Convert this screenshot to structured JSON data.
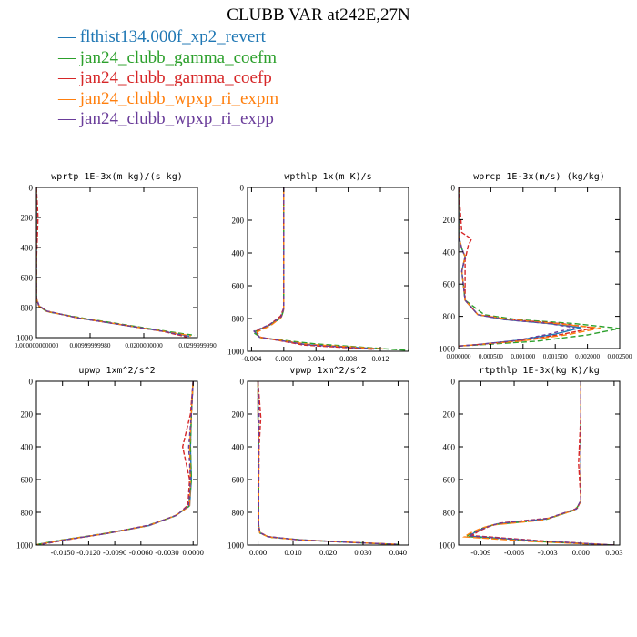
{
  "title": "CLUBB VAR at242E,27N",
  "legend": [
    {
      "label": "flthist134.000f_xp2_revert",
      "color": "#1f77b4"
    },
    {
      "label": "jan24_clubb_gamma_coefm",
      "color": "#2ca02c"
    },
    {
      "label": "jan24_clubb_gamma_coefp",
      "color": "#d62728"
    },
    {
      "label": "jan24_clubb_wpxp_ri_expm",
      "color": "#ff7f0e"
    },
    {
      "label": "jan24_clubb_wpxp_ri_expp",
      "color": "#6a3d9a"
    }
  ],
  "chart_data": [
    {
      "type": "line",
      "title": "wprtp  1E-3x(m kg)/(s kg)",
      "xlim": [
        0,
        0.03
      ],
      "ylim": [
        1000,
        0
      ],
      "xticks": [
        0,
        0.01,
        0.02,
        0.03
      ],
      "xticklabels": [
        "0.000000000000",
        "0.00999999980",
        "0.0200000000",
        "0.0299999990"
      ],
      "yticks": [
        0,
        200,
        400,
        600,
        800,
        1000
      ],
      "yticklabels": [
        "0",
        "200",
        "400",
        "600",
        "800",
        "1000"
      ],
      "series": [
        {
          "name": "flthist134.000f_xp2_revert",
          "x": [
            0,
            0,
            0,
            0,
            0.0005,
            0.002,
            0.008,
            0.016,
            0.024,
            0.0285
          ],
          "y": [
            0,
            200,
            500,
            740,
            790,
            825,
            870,
            915,
            960,
            990
          ]
        },
        {
          "name": "jan24_clubb_gamma_coefm",
          "x": [
            0,
            0,
            0,
            0,
            0.0005,
            0.002,
            0.009,
            0.017,
            0.025,
            0.0295
          ],
          "y": [
            0,
            200,
            500,
            745,
            792,
            828,
            872,
            917,
            962,
            985
          ]
        },
        {
          "name": "jan24_clubb_gamma_coefp",
          "x": [
            0,
            0.0003,
            0,
            0,
            0.0004,
            0.0018,
            0.0075,
            0.0155,
            0.0235,
            0.028
          ],
          "y": [
            0,
            200,
            500,
            735,
            785,
            822,
            868,
            912,
            958,
            995
          ]
        },
        {
          "name": "jan24_clubb_wpxp_ri_expm",
          "x": [
            0,
            0,
            0,
            0,
            0.0005,
            0.002,
            0.0082,
            0.0162,
            0.0242,
            0.0288
          ],
          "y": [
            0,
            200,
            500,
            742,
            791,
            826,
            871,
            916,
            961,
            988
          ]
        },
        {
          "name": "jan24_clubb_wpxp_ri_expp",
          "x": [
            0,
            0,
            0,
            0,
            0.0005,
            0.002,
            0.0078,
            0.0158,
            0.0238,
            0.0283
          ],
          "y": [
            0,
            200,
            500,
            738,
            788,
            824,
            869,
            914,
            959,
            992
          ]
        }
      ]
    },
    {
      "type": "line",
      "title": "wpthlp  1x(m K)/s",
      "xlim": [
        -0.0045,
        0.0155
      ],
      "ylim": [
        1000,
        0
      ],
      "xticks": [
        -0.004,
        0,
        0.004,
        0.008,
        0.012
      ],
      "xticklabels": [
        "-0.004",
        "0.000",
        "0.004",
        "0.008",
        "0.012"
      ],
      "yticks": [
        0,
        200,
        400,
        600,
        800,
        1000
      ],
      "yticklabels": [
        "0",
        "200",
        "400",
        "600",
        "800",
        "1000"
      ],
      "series": [
        {
          "name": "flthist134.000f_xp2_revert",
          "x": [
            0,
            0,
            0,
            0,
            -0.0003,
            -0.0018,
            -0.0036,
            -0.003,
            0.003,
            0.012
          ],
          "y": [
            0,
            300,
            600,
            740,
            790,
            840,
            880,
            915,
            960,
            985
          ]
        },
        {
          "name": "jan24_clubb_gamma_coefm",
          "x": [
            0,
            0,
            0,
            0,
            -0.0003,
            -0.0019,
            -0.0038,
            -0.0028,
            0.004,
            0.0155
          ],
          "y": [
            0,
            300,
            600,
            745,
            795,
            845,
            885,
            918,
            955,
            995
          ]
        },
        {
          "name": "jan24_clubb_gamma_coefp",
          "x": [
            0,
            0,
            0,
            0,
            -0.0004,
            -0.0017,
            -0.0034,
            -0.0031,
            0.0025,
            0.011
          ],
          "y": [
            0,
            300,
            600,
            735,
            785,
            835,
            875,
            912,
            962,
            988
          ]
        },
        {
          "name": "jan24_clubb_wpxp_ri_expm",
          "x": [
            0,
            0,
            0,
            0,
            -0.0003,
            -0.0016,
            -0.0033,
            -0.0029,
            0.0032,
            0.0125
          ],
          "y": [
            0,
            300,
            600,
            742,
            792,
            842,
            882,
            916,
            958,
            986
          ]
        },
        {
          "name": "jan24_clubb_wpxp_ri_expp",
          "x": [
            0,
            0,
            0,
            0,
            -0.0003,
            -0.0018,
            -0.0037,
            -0.003,
            0.0028,
            0.0115
          ],
          "y": [
            0,
            300,
            600,
            738,
            788,
            838,
            878,
            914,
            960,
            987
          ]
        }
      ]
    },
    {
      "type": "line",
      "title": "wprcp  1E-3x(m/s) (kg/kg)",
      "xlim": [
        0,
        0.0025
      ],
      "ylim": [
        1000,
        0
      ],
      "xticks": [
        0,
        0.0005,
        0.001,
        0.0015,
        0.002,
        0.0025
      ],
      "xticklabels": [
        "0.000000",
        "0.000500",
        "0.001000",
        "0.001500",
        "0.002000",
        "0.002500"
      ],
      "yticks": [
        0,
        200,
        400,
        600,
        800,
        1000
      ],
      "yticklabels": [
        "0",
        "200",
        "400",
        "600",
        "800",
        "1000"
      ],
      "series": [
        {
          "name": "flthist134.000f_xp2_revert",
          "x": [
            0,
            0,
            5e-05,
            0.0001,
            5e-05,
            0.0001,
            0.0003,
            0.0007,
            0.0014,
            0.0019,
            0.0015,
            0.0009,
            0.0003,
            0
          ],
          "y": [
            0,
            300,
            380,
            430,
            520,
            700,
            790,
            820,
            845,
            870,
            910,
            950,
            975,
            985
          ]
        },
        {
          "name": "jan24_clubb_gamma_coefm",
          "x": [
            0,
            0,
            5e-05,
            0.0001,
            5e-05,
            0.0001,
            0.0004,
            0.0009,
            0.0018,
            0.0025,
            0.002,
            0.0012,
            0.0004,
            0
          ],
          "y": [
            0,
            300,
            380,
            430,
            520,
            700,
            790,
            820,
            845,
            875,
            915,
            955,
            975,
            985
          ]
        },
        {
          "name": "jan24_clubb_gamma_coefp",
          "x": [
            0,
            5e-05,
            0.0002,
            0.00015,
            0.0001,
            0.0001,
            0.0003,
            0.0008,
            0.0016,
            0.0021,
            0.0016,
            0.001,
            0.0003,
            0
          ],
          "y": [
            0,
            280,
            320,
            360,
            450,
            700,
            790,
            820,
            845,
            872,
            912,
            950,
            975,
            985
          ]
        },
        {
          "name": "jan24_clubb_wpxp_ri_expm",
          "x": [
            0,
            0,
            5e-05,
            0.0001,
            5e-05,
            0.0001,
            0.0003,
            0.0008,
            0.0015,
            0.0022,
            0.0017,
            0.001,
            0.0003,
            0
          ],
          "y": [
            0,
            300,
            380,
            430,
            520,
            700,
            790,
            820,
            845,
            873,
            913,
            952,
            975,
            985
          ]
        },
        {
          "name": "jan24_clubb_wpxp_ri_expp",
          "x": [
            0,
            0,
            5e-05,
            0.0001,
            5e-05,
            0.0001,
            0.0003,
            0.0007,
            0.0014,
            0.0018,
            0.0014,
            0.0009,
            0.0003,
            0
          ],
          "y": [
            0,
            300,
            380,
            430,
            520,
            700,
            790,
            820,
            845,
            870,
            910,
            950,
            975,
            985
          ]
        }
      ]
    },
    {
      "type": "line",
      "title": "upwp  1xm^2/s^2",
      "xlim": [
        -0.018,
        0.0005
      ],
      "ylim": [
        1000,
        0
      ],
      "xticks": [
        -0.015,
        -0.012,
        -0.009,
        -0.006,
        -0.003,
        0
      ],
      "xticklabels": [
        "-0.0150",
        "-0.0120",
        "-0.0090",
        "-0.0060",
        "-0.0030",
        "0.0000"
      ],
      "yticks": [
        0,
        200,
        400,
        600,
        800,
        1000
      ],
      "yticklabels": [
        "0",
        "200",
        "400",
        "600",
        "800",
        "1000"
      ],
      "series": [
        {
          "name": "flthist134.000f_xp2_revert",
          "x": [
            0,
            -0.0002,
            -0.0003,
            -0.0002,
            -0.0004,
            -0.002,
            -0.005,
            -0.01,
            -0.015,
            -0.0178
          ],
          "y": [
            0,
            200,
            400,
            600,
            760,
            820,
            880,
            930,
            970,
            995
          ]
        },
        {
          "name": "jan24_clubb_gamma_coefm",
          "x": [
            0,
            -0.0002,
            -0.0003,
            -0.0002,
            -0.0005,
            -0.0022,
            -0.0055,
            -0.0105,
            -0.0155,
            -0.018
          ],
          "y": [
            0,
            200,
            400,
            600,
            765,
            825,
            885,
            932,
            972,
            998
          ]
        },
        {
          "name": "jan24_clubb_gamma_coefp",
          "x": [
            0,
            -0.0003,
            -0.0012,
            -0.0004,
            -0.0006,
            -0.0018,
            -0.0048,
            -0.0095,
            -0.0145,
            -0.0175
          ],
          "y": [
            0,
            200,
            400,
            600,
            755,
            815,
            875,
            925,
            968,
            996
          ]
        },
        {
          "name": "jan24_clubb_wpxp_ri_expm",
          "x": [
            0,
            -0.0002,
            -0.0004,
            -0.0003,
            -0.0004,
            -0.0021,
            -0.0052,
            -0.0102,
            -0.0152,
            -0.0179
          ],
          "y": [
            0,
            200,
            400,
            600,
            762,
            822,
            882,
            931,
            971,
            997
          ]
        },
        {
          "name": "jan24_clubb_wpxp_ri_expp",
          "x": [
            0,
            -0.0002,
            -0.0005,
            -0.0003,
            -0.0005,
            -0.0019,
            -0.005,
            -0.0098,
            -0.0148,
            -0.0176
          ],
          "y": [
            0,
            200,
            400,
            600,
            758,
            818,
            878,
            928,
            969,
            996
          ]
        }
      ]
    },
    {
      "type": "line",
      "title": "vpwp  1xm^2/s^2",
      "xlim": [
        -0.003,
        0.043
      ],
      "ylim": [
        1000,
        0
      ],
      "xticks": [
        0,
        0.01,
        0.02,
        0.03,
        0.04
      ],
      "xticklabels": [
        "0.000",
        "0.010",
        "0.020",
        "0.030",
        "0.040"
      ],
      "yticks": [
        0,
        200,
        400,
        600,
        800,
        1000
      ],
      "yticklabels": [
        "0",
        "200",
        "400",
        "600",
        "800",
        "1000"
      ],
      "series": [
        {
          "name": "flthist134.000f_xp2_revert",
          "x": [
            0,
            0,
            0.0002,
            0.0002,
            0.0002,
            0.0005,
            0.003,
            0.012,
            0.028,
            0.04
          ],
          "y": [
            0,
            200,
            400,
            700,
            880,
            925,
            950,
            968,
            985,
            996
          ]
        },
        {
          "name": "jan24_clubb_gamma_coefm",
          "x": [
            0,
            0,
            0.0002,
            0.0002,
            0.0002,
            0.0006,
            0.0032,
            0.013,
            0.029,
            0.041
          ],
          "y": [
            0,
            200,
            400,
            700,
            885,
            928,
            952,
            970,
            986,
            997
          ]
        },
        {
          "name": "jan24_clubb_gamma_coefp",
          "x": [
            0,
            0.0008,
            0.0003,
            0.0002,
            0.0002,
            0.0005,
            0.0028,
            0.011,
            0.027,
            0.039
          ],
          "y": [
            0,
            220,
            400,
            700,
            875,
            922,
            948,
            967,
            984,
            995
          ]
        },
        {
          "name": "jan24_clubb_wpxp_ri_expm",
          "x": [
            0,
            0,
            0.0002,
            0.0002,
            0.0002,
            0.0005,
            0.003,
            0.0125,
            0.0285,
            0.0405
          ],
          "y": [
            0,
            200,
            400,
            700,
            882,
            926,
            951,
            969,
            985,
            996
          ]
        },
        {
          "name": "jan24_clubb_wpxp_ri_expp",
          "x": [
            0,
            0.0003,
            0.0002,
            0.0002,
            0.0002,
            0.0005,
            0.0029,
            0.0115,
            0.0275,
            0.0395
          ],
          "y": [
            0,
            200,
            400,
            700,
            878,
            924,
            949,
            968,
            985,
            995
          ]
        }
      ]
    },
    {
      "type": "line",
      "title": "rtpthlp  1E-3x(kg K)/kg",
      "xlim": [
        -0.011,
        0.0035
      ],
      "ylim": [
        1000,
        0
      ],
      "xticks": [
        -0.009,
        -0.006,
        -0.003,
        0,
        0.003
      ],
      "xticklabels": [
        "-0.009",
        "-0.006",
        "-0.003",
        "0.000",
        "0.003"
      ],
      "yticks": [
        0,
        200,
        400,
        600,
        800,
        1000
      ],
      "yticklabels": [
        "0",
        "200",
        "400",
        "600",
        "800",
        "1000"
      ],
      "series": [
        {
          "name": "flthist134.000f_xp2_revert",
          "x": [
            0,
            0,
            0,
            0,
            -0.0004,
            -0.003,
            -0.0075,
            -0.0085,
            -0.0095,
            -0.01,
            -0.004,
            0.003
          ],
          "y": [
            0,
            200,
            500,
            730,
            780,
            840,
            870,
            890,
            920,
            945,
            975,
            1000
          ]
        },
        {
          "name": "jan24_clubb_gamma_coefm",
          "x": [
            0,
            0,
            0,
            0,
            -0.0005,
            -0.0032,
            -0.0078,
            -0.0088,
            -0.0098,
            -0.0103,
            -0.0042,
            0.003
          ],
          "y": [
            0,
            200,
            500,
            735,
            785,
            845,
            875,
            895,
            925,
            948,
            977,
            1000
          ]
        },
        {
          "name": "jan24_clubb_gamma_coefp",
          "x": [
            0,
            0,
            -0.0002,
            0,
            -0.0003,
            -0.0028,
            -0.0072,
            -0.0082,
            -0.0092,
            -0.0098,
            -0.0038,
            0.003
          ],
          "y": [
            0,
            200,
            500,
            725,
            775,
            835,
            865,
            885,
            915,
            942,
            973,
            1000
          ]
        },
        {
          "name": "jan24_clubb_wpxp_ri_expm",
          "x": [
            0,
            0,
            0,
            0,
            -0.0006,
            -0.0035,
            -0.008,
            -0.009,
            -0.01,
            -0.0105,
            -0.0045,
            0.003
          ],
          "y": [
            0,
            200,
            500,
            738,
            788,
            848,
            878,
            898,
            928,
            950,
            978,
            1000
          ]
        },
        {
          "name": "jan24_clubb_wpxp_ri_expp",
          "x": [
            0,
            0,
            0,
            0,
            -0.0004,
            -0.003,
            -0.0074,
            -0.0084,
            -0.0094,
            -0.0101,
            -0.0039,
            0.003
          ],
          "y": [
            0,
            200,
            500,
            728,
            778,
            838,
            868,
            888,
            918,
            944,
            974,
            1000
          ]
        }
      ]
    }
  ]
}
